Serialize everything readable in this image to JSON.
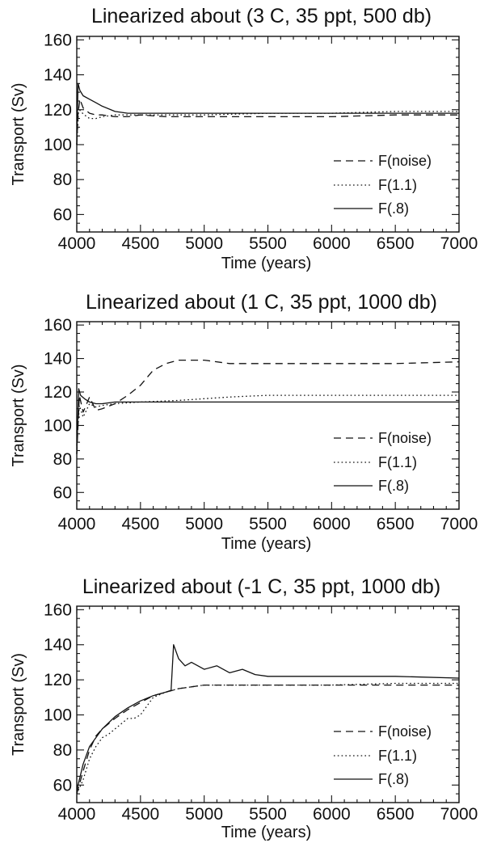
{
  "chart_data": [
    {
      "type": "line",
      "title": "Linearized about (3 C, 35 ppt, 500 db)",
      "xlabel": "Time (years)",
      "ylabel": "Transport (Sv)",
      "xlim": [
        4000,
        7000
      ],
      "ylim": [
        50,
        162
      ],
      "xticks": [
        4000,
        4500,
        5000,
        5500,
        6000,
        6500,
        7000
      ],
      "yticks": [
        60,
        80,
        100,
        120,
        140,
        160
      ],
      "legend_position": "bottom-right",
      "series": [
        {
          "name": "F(noise)",
          "style": "dashed",
          "x": [
            4000,
            4010,
            4025,
            4050,
            4100,
            4150,
            4200,
            4300,
            4400,
            4500,
            4700,
            5000,
            5500,
            6000,
            6500,
            7000
          ],
          "y": [
            100,
            118,
            126,
            121,
            118,
            117,
            117,
            116,
            116,
            117,
            116,
            116,
            116,
            116,
            117,
            117
          ]
        },
        {
          "name": "F(1.1)",
          "style": "dotted",
          "x": [
            4000,
            4015,
            4030,
            4060,
            4100,
            4150,
            4200,
            4300,
            4400,
            4500,
            4700,
            5000,
            5500,
            6000,
            6500,
            7000
          ],
          "y": [
            100,
            121,
            119,
            117,
            115,
            115,
            116,
            117,
            117,
            117,
            117,
            117,
            118,
            118,
            119,
            119
          ]
        },
        {
          "name": "F(.8)",
          "style": "solid",
          "x": [
            4000,
            4010,
            4025,
            4050,
            4100,
            4150,
            4200,
            4300,
            4400,
            4500,
            4700,
            5000,
            5500,
            6000,
            6500,
            7000
          ],
          "y": [
            100,
            135,
            131,
            128,
            126,
            124,
            122,
            119,
            118,
            118,
            118,
            118,
            118,
            118,
            118,
            118
          ]
        }
      ]
    },
    {
      "type": "line",
      "title": "Linearized about (1 C, 35 ppt, 1000 db)",
      "xlabel": "Time (years)",
      "ylabel": "Transport (Sv)",
      "xlim": [
        4000,
        7000
      ],
      "ylim": [
        50,
        162
      ],
      "xticks": [
        4000,
        4500,
        5000,
        5500,
        6000,
        6500,
        7000
      ],
      "yticks": [
        60,
        80,
        100,
        120,
        140,
        160
      ],
      "legend_position": "bottom-right",
      "series": [
        {
          "name": "F(noise)",
          "style": "dashed",
          "x": [
            4000,
            4020,
            4050,
            4100,
            4150,
            4200,
            4300,
            4400,
            4500,
            4600,
            4700,
            4800,
            5000,
            5200,
            5500,
            6000,
            6500,
            7000
          ],
          "y": [
            83,
            118,
            108,
            117,
            109,
            110,
            113,
            118,
            124,
            133,
            137,
            139,
            139,
            137,
            137,
            137,
            137,
            138
          ]
        },
        {
          "name": "F(1.1)",
          "style": "dotted",
          "x": [
            4000,
            4020,
            4050,
            4100,
            4150,
            4200,
            4300,
            4500,
            4800,
            5000,
            5200,
            5500,
            6000,
            6500,
            7000
          ],
          "y": [
            88,
            112,
            105,
            113,
            111,
            112,
            113,
            114,
            115,
            116,
            117,
            118,
            118,
            118,
            118
          ]
        },
        {
          "name": "F(.8)",
          "style": "solid",
          "x": [
            4000,
            4015,
            4030,
            4060,
            4100,
            4150,
            4200,
            4300,
            4500,
            5000,
            5500,
            6000,
            6500,
            7000
          ],
          "y": [
            83,
            122,
            118,
            116,
            114,
            113,
            113,
            114,
            114,
            114,
            114,
            114,
            114,
            114
          ]
        }
      ]
    },
    {
      "type": "line",
      "title": "Linearized about (-1 C, 35 ppt, 1000 db)",
      "xlabel": "Time (years)",
      "ylabel": "Transport (Sv)",
      "xlim": [
        4000,
        7000
      ],
      "ylim": [
        50,
        162
      ],
      "xticks": [
        4000,
        4500,
        5000,
        5500,
        6000,
        6500,
        7000
      ],
      "yticks": [
        60,
        80,
        100,
        120,
        140,
        160
      ],
      "legend_position": "bottom-right",
      "series": [
        {
          "name": "F(noise)",
          "style": "dashed",
          "x": [
            4000,
            4050,
            4100,
            4150,
            4200,
            4300,
            4400,
            4500,
            4600,
            4700,
            4800,
            4900,
            5000,
            5200,
            5500,
            6000,
            6500,
            7000
          ],
          "y": [
            55,
            68,
            80,
            88,
            92,
            98,
            103,
            107,
            111,
            113,
            115,
            116,
            117,
            117,
            117,
            117,
            117,
            117
          ]
        },
        {
          "name": "F(1.1)",
          "style": "dotted",
          "x": [
            4000,
            4050,
            4100,
            4150,
            4200,
            4250,
            4300,
            4350,
            4400,
            4450,
            4500,
            4600,
            4700,
            4800,
            5000,
            5500,
            6000,
            6500,
            7000
          ],
          "y": [
            55,
            63,
            75,
            82,
            87,
            89,
            92,
            95,
            98,
            98,
            100,
            110,
            113,
            115,
            117,
            117,
            117,
            118,
            118
          ]
        },
        {
          "name": "F(.8)",
          "style": "solid",
          "x": [
            4000,
            4050,
            4100,
            4200,
            4300,
            4400,
            4500,
            4600,
            4700,
            4740,
            4760,
            4800,
            4850,
            4900,
            5000,
            5100,
            5200,
            5300,
            5400,
            5500,
            6000,
            6500,
            7000
          ],
          "y": [
            57,
            72,
            82,
            92,
            99,
            104,
            108,
            111,
            113,
            114,
            140,
            132,
            128,
            130,
            126,
            128,
            124,
            126,
            123,
            122,
            122,
            122,
            121
          ]
        }
      ]
    }
  ]
}
